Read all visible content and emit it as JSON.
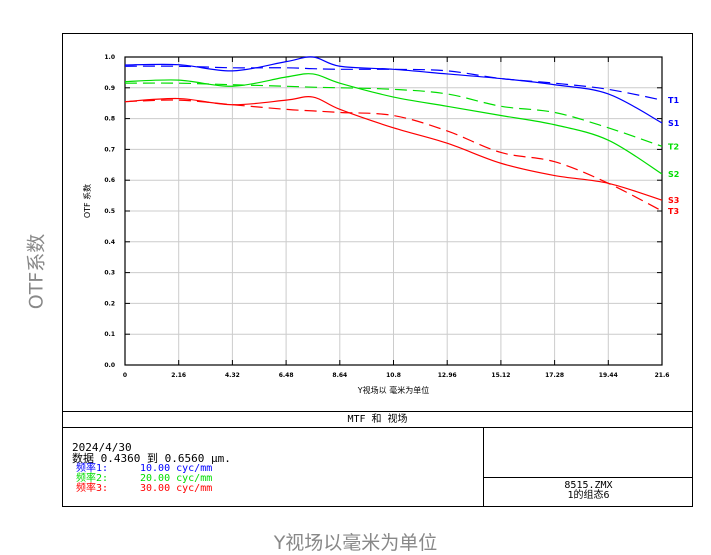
{
  "outer_labels": {
    "y": "OTF系数",
    "x": "Y视场以毫米为单位"
  },
  "footer": {
    "title": "MTF 和 视场",
    "date": "2024/4/30",
    "wavelength": "数据 0.4360 到 0.6560 μm.",
    "freqs": [
      {
        "label": "频率1:",
        "value": "10.00 cyc/mm",
        "color": "#0000ff"
      },
      {
        "label": "频率2:",
        "value": "20.00 cyc/mm",
        "color": "#00dd00"
      },
      {
        "label": "频率3:",
        "value": "30.00 cyc/mm",
        "color": "#ff0000"
      }
    ],
    "file": "8515.ZMX",
    "config": "1的组态6"
  },
  "chart_data": {
    "type": "line",
    "xlabel": "Y视场以 毫米为单位",
    "ylabel": "OTF 系数",
    "xlim": [
      0,
      21.6
    ],
    "ylim": [
      0,
      1.0
    ],
    "grid": true,
    "xticks": [
      "0",
      "2.16",
      "4.32",
      "6.48",
      "8.64",
      "10.8",
      "12.96",
      "15.12",
      "17.28",
      "19.44",
      "21.6"
    ],
    "yticks": [
      "0.0",
      "0.1",
      "0.2",
      "0.3",
      "0.4",
      "0.5",
      "0.6",
      "0.7",
      "0.8",
      "0.9",
      "1.0"
    ],
    "x": [
      0,
      2.16,
      4.32,
      6.48,
      7.56,
      8.64,
      10.8,
      12.96,
      15.12,
      17.28,
      19.44,
      21.6
    ],
    "series": [
      {
        "name": "T1",
        "color": "#0000ff",
        "dashed": true,
        "values": [
          0.97,
          0.97,
          0.965,
          0.965,
          0.962,
          0.96,
          0.96,
          0.955,
          0.93,
          0.915,
          0.895,
          0.86
        ]
      },
      {
        "name": "S1",
        "color": "#0000ff",
        "dashed": false,
        "values": [
          0.974,
          0.975,
          0.955,
          0.985,
          1.0,
          0.97,
          0.96,
          0.945,
          0.93,
          0.91,
          0.88,
          0.786
        ]
      },
      {
        "name": "T2",
        "color": "#00dd00",
        "dashed": true,
        "values": [
          0.915,
          0.915,
          0.91,
          0.905,
          0.902,
          0.9,
          0.895,
          0.88,
          0.84,
          0.82,
          0.77,
          0.71
        ]
      },
      {
        "name": "S2",
        "color": "#00dd00",
        "dashed": false,
        "values": [
          0.92,
          0.925,
          0.905,
          0.935,
          0.945,
          0.915,
          0.87,
          0.84,
          0.81,
          0.78,
          0.73,
          0.62
        ]
      },
      {
        "name": "S3",
        "color": "#ff0000",
        "dashed": false,
        "values": [
          0.855,
          0.865,
          0.845,
          0.86,
          0.87,
          0.83,
          0.77,
          0.72,
          0.655,
          0.615,
          0.59,
          0.535
        ]
      },
      {
        "name": "T3",
        "color": "#ff0000",
        "dashed": true,
        "values": [
          0.855,
          0.86,
          0.845,
          0.83,
          0.825,
          0.82,
          0.81,
          0.76,
          0.69,
          0.66,
          0.59,
          0.5
        ]
      }
    ]
  }
}
